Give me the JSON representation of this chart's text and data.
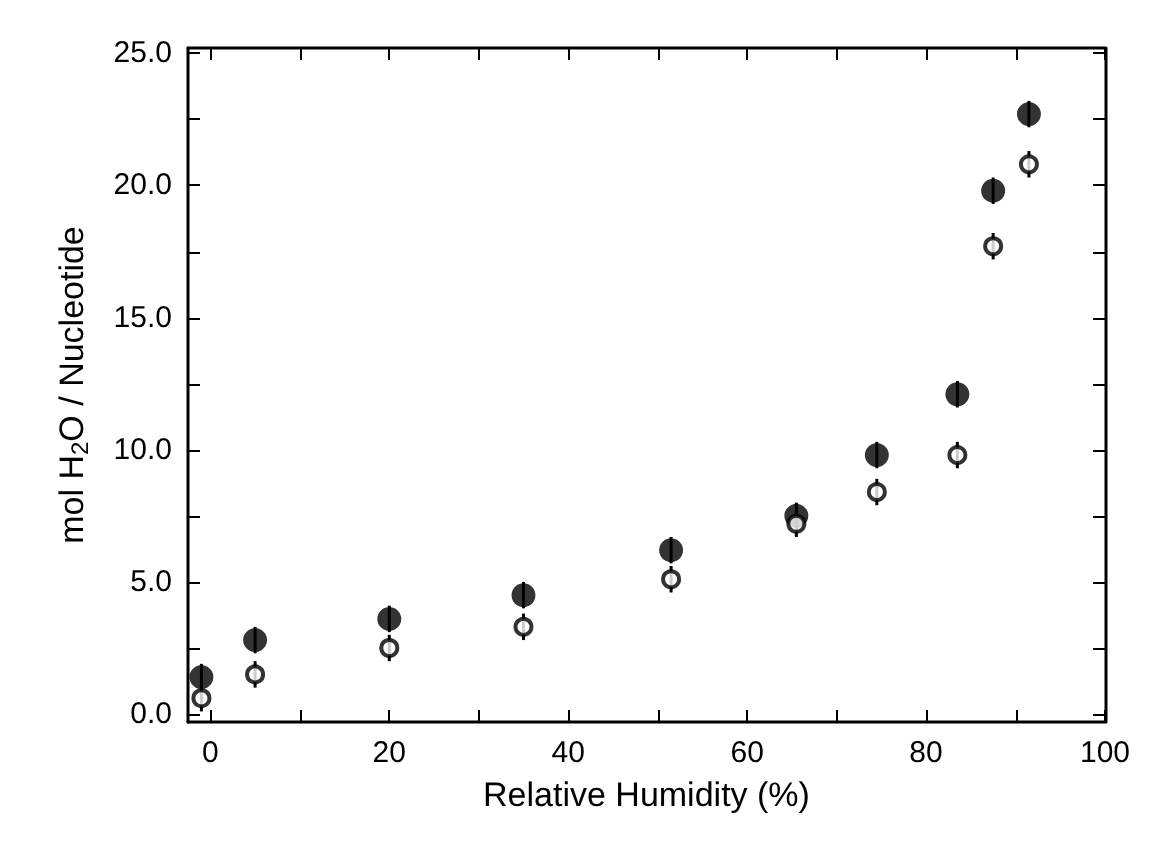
{
  "chart_data": {
    "type": "scatter",
    "xlabel": "Relative Humidity (%)",
    "ylabel": "mol H$_{2}$O / Nucleotide",
    "x": [
      -1,
      5,
      20,
      35,
      51.5,
      65.5,
      74.5,
      83.5,
      87.5,
      91.5
    ],
    "series": [
      {
        "color": "#000000",
        "values": [
          1.4,
          2.8,
          3.6,
          4.5,
          6.2,
          7.5,
          9.8,
          12.1,
          19.8,
          22.7
        ],
        "errors": [
          0.5,
          0.5,
          0.5,
          0.5,
          0.5,
          0.5,
          0.5,
          0.5,
          0.5,
          0.5
        ]
      },
      {
        "color": "#000000",
        "values": [
          0.6,
          1.5,
          2.5,
          3.3,
          5.1,
          7.2,
          8.4,
          9.8,
          17.7,
          20.8
        ],
        "errors": [
          0.5,
          0.5,
          0.5,
          0.5,
          0.5,
          0.5,
          0.5,
          0.5,
          0.5,
          0.5
        ]
      }
    ],
    "xlim": [
      -2.5,
      100
    ],
    "ylim": [
      -0.3,
      25.2
    ],
    "xticks": [
      0,
      {
        "value": 10,
        "label": null
      },
      20,
      {
        "value": 30,
        "label": null
      },
      40,
      {
        "value": 50,
        "label": null
      },
      60,
      {
        "value": 70,
        "label": null
      },
      80,
      {
        "value": 90,
        "label": null
      },
      100
    ],
    "yticks": [
      {
        "value": 0,
        "label": "0.0"
      },
      {
        "value": 2.5,
        "label": null
      },
      {
        "value": 5,
        "label": "5.0"
      },
      {
        "value": 7.5,
        "label": null
      },
      {
        "value": 10,
        "label": "10.0"
      },
      {
        "value": 12.5,
        "label": null
      },
      {
        "value": 15,
        "label": "15.0"
      },
      {
        "value": 17.5,
        "label": null
      },
      {
        "value": 20,
        "label": "20.0"
      },
      {
        "value": 22.5,
        "label": null
      },
      {
        "value": 25,
        "label": "25.0"
      }
    ],
    "marker": "circle"
  }
}
